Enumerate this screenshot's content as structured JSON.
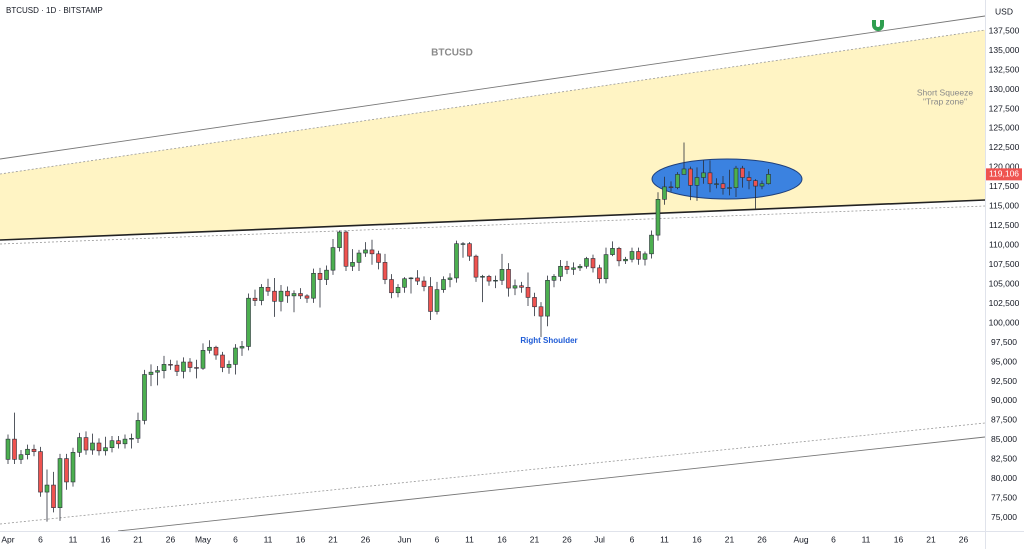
{
  "chart_data": {
    "type": "candlestick",
    "header": "BTCUSD · 1D · BITSTAMP",
    "title": "BTCUSD",
    "currency": "USD",
    "x": [
      "Apr 1",
      "Apr 2",
      "Apr 3",
      "Apr 4",
      "Apr 5",
      "Apr 6",
      "Apr 7",
      "Apr 8",
      "Apr 9",
      "Apr 10",
      "Apr 11",
      "Apr 12",
      "Apr 13",
      "Apr 14",
      "Apr 15",
      "Apr 16",
      "Apr 17",
      "Apr 18",
      "Apr 19",
      "Apr 20",
      "Apr 21",
      "Apr 22",
      "Apr 23",
      "Apr 24",
      "Apr 25",
      "Apr 26",
      "Apr 27",
      "Apr 28",
      "Apr 29",
      "Apr 30",
      "May 1",
      "May 2",
      "May 3",
      "May 4",
      "May 5",
      "May 6",
      "May 7",
      "May 8",
      "May 9",
      "May 10",
      "May 11",
      "May 12",
      "May 13",
      "May 14",
      "May 15",
      "May 16",
      "May 17",
      "May 18",
      "May 19",
      "May 20",
      "May 21",
      "May 22",
      "May 23",
      "May 24",
      "May 25",
      "May 26",
      "May 27",
      "May 28",
      "May 29",
      "May 30",
      "May 31",
      "Jun 1",
      "Jun 2",
      "Jun 3",
      "Jun 4",
      "Jun 5",
      "Jun 6",
      "Jun 7",
      "Jun 8",
      "Jun 9",
      "Jun 10",
      "Jun 11",
      "Jun 12",
      "Jun 13",
      "Jun 14",
      "Jun 15",
      "Jun 16",
      "Jun 17",
      "Jun 18",
      "Jun 19",
      "Jun 20",
      "Jun 21",
      "Jun 22",
      "Jun 23",
      "Jun 24",
      "Jun 25",
      "Jun 26",
      "Jun 27",
      "Jun 28",
      "Jun 29",
      "Jun 30",
      "Jul 1",
      "Jul 2",
      "Jul 3",
      "Jul 4",
      "Jul 5",
      "Jul 6",
      "Jul 7",
      "Jul 8",
      "Jul 9",
      "Jul 10",
      "Jul 11",
      "Jul 12",
      "Jul 13",
      "Jul 14",
      "Jul 15",
      "Jul 16",
      "Jul 17",
      "Jul 18",
      "Jul 19",
      "Jul 20",
      "Jul 21",
      "Jul 22",
      "Jul 23",
      "Jul 24",
      "Jul 25",
      "Jul 26",
      "Jul 27"
    ],
    "open": [
      82500,
      85100,
      82500,
      83100,
      83800,
      83500,
      78300,
      79200,
      76300,
      82600,
      79600,
      83400,
      85300,
      83700,
      84600,
      83600,
      84000,
      84900,
      84500,
      85100,
      85200,
      87500,
      93400,
      93700,
      93900,
      94700,
      94600,
      93800,
      95000,
      94300,
      94200,
      96500,
      96900,
      95900,
      94300,
      94700,
      96800,
      97000,
      103200,
      102900,
      104600,
      104100,
      102800,
      104100,
      103500,
      103800,
      103500,
      103200,
      106400,
      105600,
      106800,
      109700,
      111700,
      107300,
      107800,
      109000,
      109400,
      108900,
      107800,
      105600,
      103900,
      104600,
      105700,
      105800,
      105400,
      104700,
      101500,
      104300,
      105600,
      105800,
      110200,
      110200,
      108600,
      105900,
      106000,
      105400,
      105500,
      106900,
      104500,
      104800,
      104600,
      103300,
      102100,
      100900,
      105500,
      106000,
      107300,
      106900,
      107100,
      107300,
      108300,
      107100,
      105700,
      108800,
      109600,
      108000,
      108200,
      109200,
      108200,
      108900,
      111300,
      115900,
      117500,
      117400,
      119100,
      119800,
      117700,
      118700,
      119300,
      117900,
      117900,
      117300,
      117400,
      119900,
      118700,
      118300,
      117600,
      117900
    ],
    "high": [
      85700,
      88500,
      83700,
      84400,
      84400,
      84100,
      81200,
      80900,
      83200,
      83200,
      84000,
      85900,
      86100,
      85800,
      85200,
      85400,
      85500,
      85500,
      85700,
      85800,
      88500,
      94000,
      94700,
      94500,
      95800,
      95300,
      95200,
      95600,
      95500,
      95300,
      97400,
      97800,
      97100,
      96300,
      95200,
      97300,
      97700,
      103800,
      104300,
      105000,
      105700,
      105800,
      104900,
      104700,
      104200,
      104500,
      103700,
      107000,
      107100,
      107400,
      110800,
      111900,
      111900,
      109500,
      109400,
      110400,
      110700,
      109300,
      108900,
      106300,
      105000,
      105900,
      105900,
      106800,
      106000,
      105900,
      105300,
      106000,
      106400,
      110600,
      110400,
      110400,
      108800,
      106200,
      106200,
      106100,
      108900,
      107700,
      105600,
      105300,
      106500,
      103900,
      102700,
      106100,
      106300,
      108100,
      108000,
      107800,
      107600,
      108500,
      108800,
      107500,
      109700,
      110500,
      109800,
      108500,
      109700,
      109700,
      109200,
      111900,
      116800,
      118800,
      118200,
      119400,
      123200,
      120100,
      120000,
      120900,
      120900,
      118600,
      118900,
      119700,
      120200,
      120200,
      119500,
      118500,
      118300,
      119800
    ],
    "low": [
      81900,
      81900,
      81900,
      82500,
      82900,
      77700,
      74500,
      75700,
      74600,
      78600,
      79000,
      82800,
      83100,
      83100,
      83000,
      83000,
      83400,
      83900,
      83900,
      83900,
      84600,
      87000,
      91900,
      92000,
      92900,
      94000,
      93200,
      92900,
      93700,
      92900,
      94000,
      96100,
      95300,
      93700,
      93500,
      93400,
      95800,
      96500,
      102200,
      102300,
      103500,
      100800,
      101500,
      102600,
      101400,
      103100,
      102600,
      102600,
      102000,
      104900,
      106200,
      109200,
      106700,
      106700,
      106700,
      108500,
      107500,
      106900,
      105000,
      103200,
      103300,
      103900,
      103800,
      104900,
      104100,
      100400,
      101100,
      103900,
      104600,
      105200,
      108400,
      108000,
      105300,
      102700,
      104800,
      104500,
      104900,
      103400,
      103600,
      103900,
      102200,
      100900,
      98200,
      99600,
      104600,
      105400,
      106300,
      106200,
      106700,
      107000,
      106500,
      105100,
      105100,
      108600,
      107300,
      107600,
      107800,
      107500,
      107400,
      108300,
      110600,
      115200,
      116900,
      117200,
      119100,
      115800,
      115700,
      117900,
      116800,
      117300,
      116500,
      116400,
      116200,
      117400,
      117200,
      114700,
      117200,
      117800
    ],
    "close": [
      85100,
      82500,
      83100,
      83800,
      83500,
      78300,
      79200,
      76300,
      82600,
      79600,
      83400,
      85300,
      83700,
      84600,
      83600,
      84000,
      84900,
      84500,
      85100,
      85200,
      87500,
      93400,
      93700,
      93900,
      94700,
      94600,
      93800,
      95000,
      94300,
      94200,
      96500,
      96900,
      95900,
      94300,
      94700,
      96800,
      97000,
      103200,
      102900,
      104600,
      104100,
      102800,
      104100,
      103500,
      103800,
      103500,
      103200,
      106400,
      105600,
      106800,
      109700,
      111700,
      107300,
      107800,
      109000,
      109400,
      108900,
      107800,
      105600,
      103900,
      104600,
      105700,
      105800,
      105400,
      104700,
      101500,
      104300,
      105600,
      105800,
      110200,
      110200,
      108600,
      105900,
      106000,
      105400,
      105500,
      106900,
      104500,
      104800,
      104600,
      103300,
      102100,
      100900,
      105500,
      106000,
      107300,
      106900,
      107100,
      107300,
      108300,
      107100,
      105700,
      108800,
      109600,
      108000,
      108200,
      109200,
      108200,
      108900,
      111300,
      115900,
      117500,
      117400,
      119100,
      119800,
      117700,
      118700,
      119300,
      117900,
      117900,
      117300,
      117400,
      119900,
      118700,
      118300,
      117600,
      117900,
      119106
    ],
    "up_color": "#4caf50",
    "down_color": "#ef5350",
    "last_price_label": "119,106",
    "xlim": [
      "Mar 31",
      "Aug 28"
    ],
    "xticks": [
      {
        "value": "Apr 1",
        "label": "Apr"
      },
      {
        "value": "Apr 6",
        "label": "6"
      },
      {
        "value": "Apr 11",
        "label": "11"
      },
      {
        "value": "Apr 16",
        "label": "16"
      },
      {
        "value": "Apr 21",
        "label": "21"
      },
      {
        "value": "Apr 26",
        "label": "26"
      },
      {
        "value": "May 1",
        "label": "May"
      },
      {
        "value": "May 6",
        "label": "6"
      },
      {
        "value": "May 11",
        "label": "11"
      },
      {
        "value": "May 16",
        "label": "16"
      },
      {
        "value": "May 21",
        "label": "21"
      },
      {
        "value": "May 26",
        "label": "26"
      },
      {
        "value": "Jun 1",
        "label": "Jun"
      },
      {
        "value": "Jun 6",
        "label": "6"
      },
      {
        "value": "Jun 11",
        "label": "11"
      },
      {
        "value": "Jun 16",
        "label": "16"
      },
      {
        "value": "Jun 21",
        "label": "21"
      },
      {
        "value": "Jun 26",
        "label": "26"
      },
      {
        "value": "Jul 1",
        "label": "Jul"
      },
      {
        "value": "Jul 6",
        "label": "6"
      },
      {
        "value": "Jul 11",
        "label": "11"
      },
      {
        "value": "Jul 16",
        "label": "16"
      },
      {
        "value": "Jul 21",
        "label": "21"
      },
      {
        "value": "Jul 26",
        "label": "26"
      },
      {
        "value": "Aug 1",
        "label": "Aug"
      },
      {
        "value": "Aug 6",
        "label": "6"
      },
      {
        "value": "Aug 11",
        "label": "11"
      },
      {
        "value": "Aug 16",
        "label": "16"
      },
      {
        "value": "Aug 21",
        "label": "21"
      },
      {
        "value": "Aug 26",
        "label": "26"
      }
    ],
    "ylim": [
      73300,
      141500
    ],
    "yticks": [
      {
        "value": 75000,
        "label": "75,000"
      },
      {
        "value": 77500,
        "label": "77,500"
      },
      {
        "value": 80000,
        "label": "80,000"
      },
      {
        "value": 82500,
        "label": "82,500"
      },
      {
        "value": 85000,
        "label": "85,000"
      },
      {
        "value": 87500,
        "label": "87,500"
      },
      {
        "value": 90000,
        "label": "90,000"
      },
      {
        "value": 92500,
        "label": "92,500"
      },
      {
        "value": 95000,
        "label": "95,000"
      },
      {
        "value": 97500,
        "label": "97,500"
      },
      {
        "value": 100000,
        "label": "100,000"
      },
      {
        "value": 102500,
        "label": "102,500"
      },
      {
        "value": 105000,
        "label": "105,000"
      },
      {
        "value": 107500,
        "label": "107,500"
      },
      {
        "value": 110000,
        "label": "110,000"
      },
      {
        "value": 112500,
        "label": "112,500"
      },
      {
        "value": 115000,
        "label": "115,000"
      },
      {
        "value": 117500,
        "label": "117,500"
      },
      {
        "value": 120000,
        "label": "120,000"
      },
      {
        "value": 122500,
        "label": "122,500"
      },
      {
        "value": 125000,
        "label": "125,000"
      },
      {
        "value": 127500,
        "label": "127,500"
      },
      {
        "value": 130000,
        "label": "130,000"
      },
      {
        "value": 132500,
        "label": "132,500"
      },
      {
        "value": 135000,
        "label": "135,000"
      },
      {
        "value": 137500,
        "label": "137,500"
      }
    ],
    "grid": false,
    "annotations": [
      "Short Squeeze",
      "\"Trap zone\"",
      "Right Shoulder"
    ]
  }
}
